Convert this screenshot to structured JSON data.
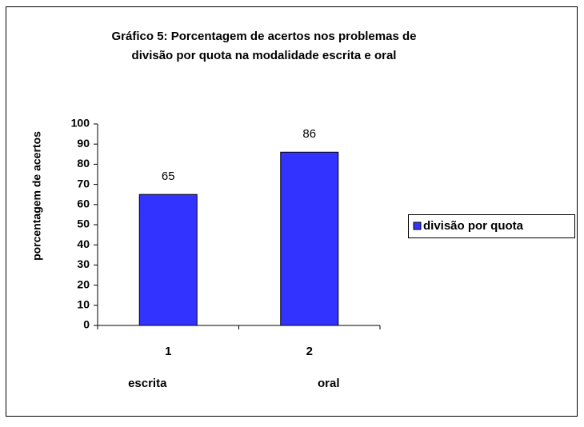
{
  "chart_data": {
    "type": "bar",
    "title": [
      "Gráfico 5: Porcentagem de acertos nos problemas de",
      "divisão por quota na modalidade escrita e oral"
    ],
    "y_label": "porcentagem de acertos",
    "categories": [
      "1",
      "2"
    ],
    "category_names": [
      "escrita",
      "oral"
    ],
    "series": [
      {
        "name": "divisão por quota",
        "color": "#3333ff",
        "values": [
          65,
          86
        ]
      }
    ],
    "ylim": [
      0,
      100
    ],
    "yticks": [
      0,
      10,
      20,
      30,
      40,
      50,
      60,
      70,
      80,
      90,
      100
    ],
    "grid": false,
    "legend": "right"
  }
}
